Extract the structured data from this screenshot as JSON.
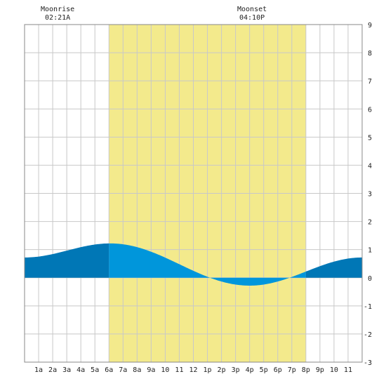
{
  "chart_data": {
    "type": "area",
    "annotations": [
      {
        "label": "Moonrise",
        "time": "02:21A",
        "hour": 2.35
      },
      {
        "label": "Moonset",
        "time": "04:10P",
        "hour": 16.17
      }
    ],
    "daylight_hours": [
      6,
      20
    ],
    "x_ticks": [
      {
        "hour": 1,
        "label": "1a"
      },
      {
        "hour": 2,
        "label": "2a"
      },
      {
        "hour": 3,
        "label": "3a"
      },
      {
        "hour": 4,
        "label": "4a"
      },
      {
        "hour": 5,
        "label": "5a"
      },
      {
        "hour": 6,
        "label": "6a"
      },
      {
        "hour": 7,
        "label": "7a"
      },
      {
        "hour": 8,
        "label": "8a"
      },
      {
        "hour": 9,
        "label": "9a"
      },
      {
        "hour": 10,
        "label": "10"
      },
      {
        "hour": 11,
        "label": "11"
      },
      {
        "hour": 12,
        "label": "12"
      },
      {
        "hour": 13,
        "label": "1p"
      },
      {
        "hour": 14,
        "label": "2p"
      },
      {
        "hour": 15,
        "label": "3p"
      },
      {
        "hour": 16,
        "label": "4p"
      },
      {
        "hour": 17,
        "label": "5p"
      },
      {
        "hour": 18,
        "label": "6p"
      },
      {
        "hour": 19,
        "label": "7p"
      },
      {
        "hour": 20,
        "label": "8p"
      },
      {
        "hour": 21,
        "label": "9p"
      },
      {
        "hour": 22,
        "label": "10"
      },
      {
        "hour": 23,
        "label": "11"
      }
    ],
    "y_ticks": [
      "-3",
      "-2",
      "-1",
      "0",
      "1",
      "2",
      "3",
      "4",
      "5",
      "6",
      "7",
      "8",
      "9"
    ],
    "xlim": [
      0,
      24
    ],
    "ylim": [
      -3,
      9
    ],
    "tide_extrema": [
      {
        "hour": 0,
        "value": 0.72
      },
      {
        "hour": 6.1,
        "value": 1.22
      },
      {
        "hour": 16.0,
        "value": -0.28
      },
      {
        "hour": 24,
        "value": 0.72
      }
    ],
    "colors": {
      "night_fill": "#0077b6",
      "day_fill": "#0096db",
      "daylight_band": "#f3ea8c",
      "grid": "#c8c8c8",
      "axis": "#888888"
    }
  }
}
